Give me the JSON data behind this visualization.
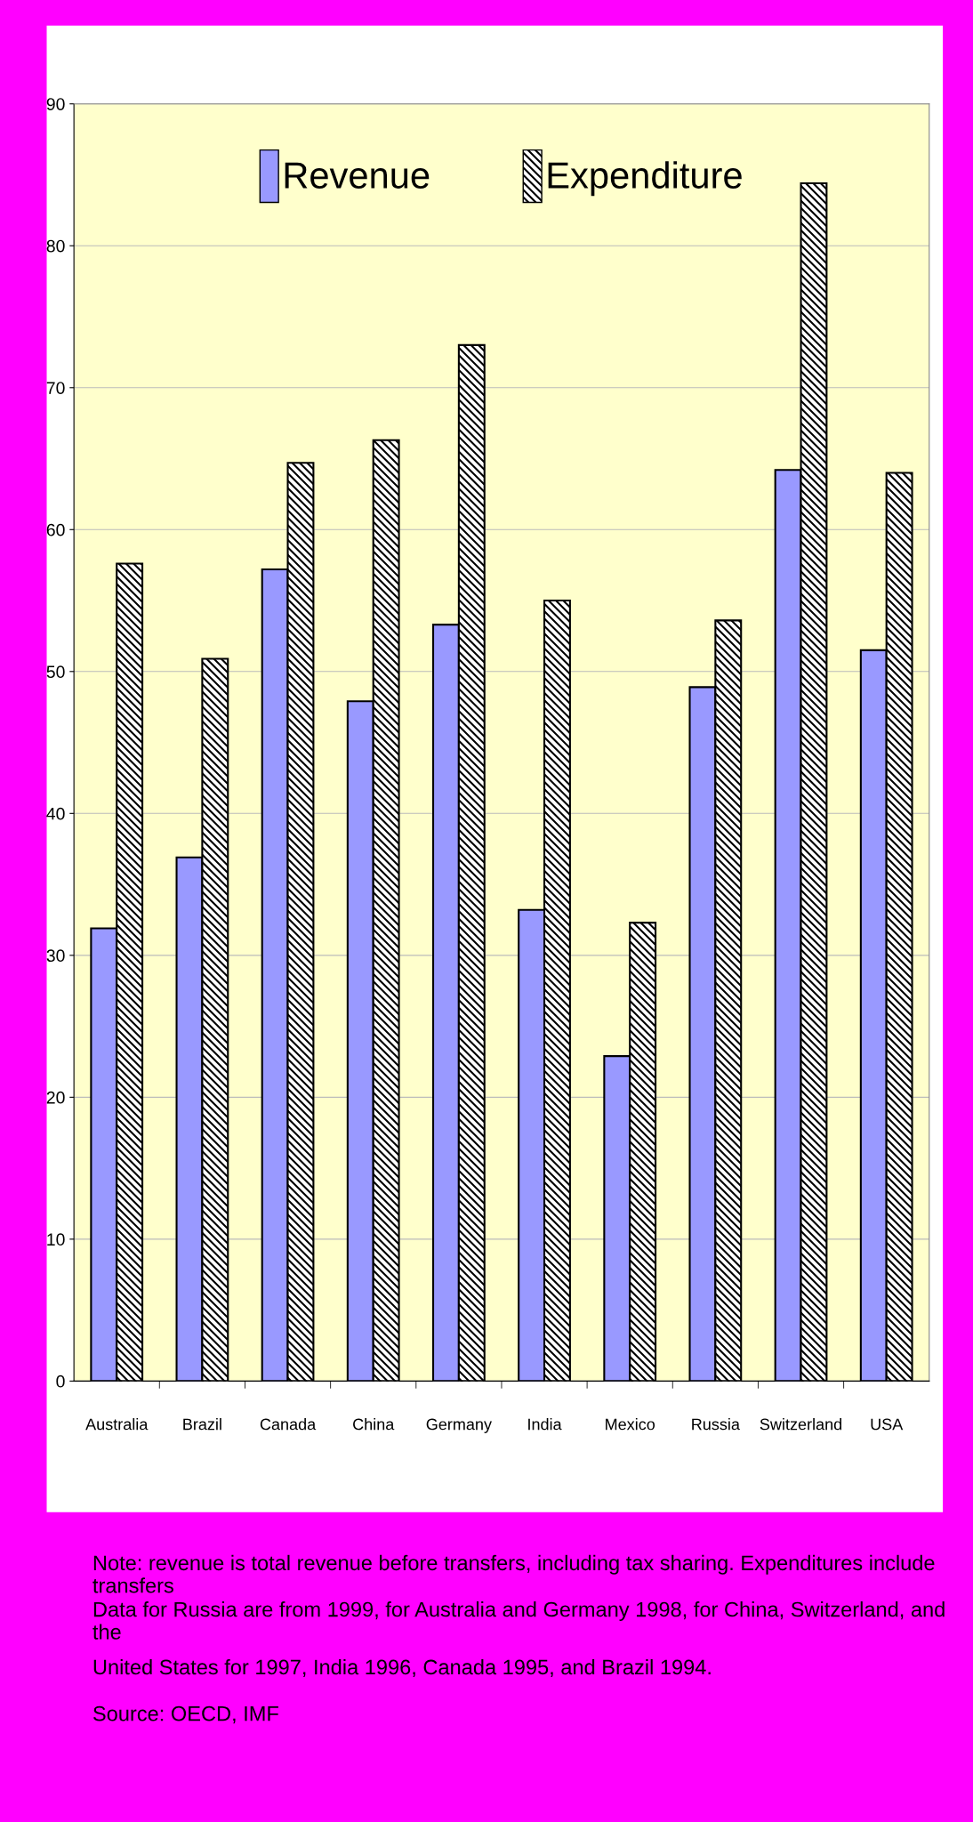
{
  "chart_data": {
    "type": "bar",
    "categories": [
      "Australia",
      "Brazil",
      "Canada",
      "China",
      "Germany",
      "India",
      "Mexico",
      "Russia",
      "Switzerland",
      "USA"
    ],
    "series": [
      {
        "name": "Revenue",
        "color": "#9999ff",
        "values": [
          31.9,
          36.9,
          57.2,
          47.9,
          53.3,
          33.2,
          22.9,
          48.9,
          64.2,
          51.5
        ]
      },
      {
        "name": "Expenditure",
        "color": "#000000",
        "values": [
          57.6,
          50.9,
          64.7,
          66.3,
          73.0,
          55.0,
          32.3,
          53.6,
          84.4,
          64.0
        ]
      }
    ],
    "ylim": [
      0,
      90
    ],
    "yticks": [
      0,
      10,
      20,
      30,
      40,
      50,
      60,
      70,
      80,
      90
    ],
    "grid": "y",
    "legend": "top",
    "annotations": [
      "Note: revenue is total revenue before transfers, including tax sharing. Expenditures include transfers",
      "Data for Russia are from 1999, for Australia and Germany 1998, for China, Switzerland, and the",
      "United States for 1997, India 1996, Canada 1995, and Brazil 1994.",
      "Source: OECD, IMF"
    ]
  }
}
